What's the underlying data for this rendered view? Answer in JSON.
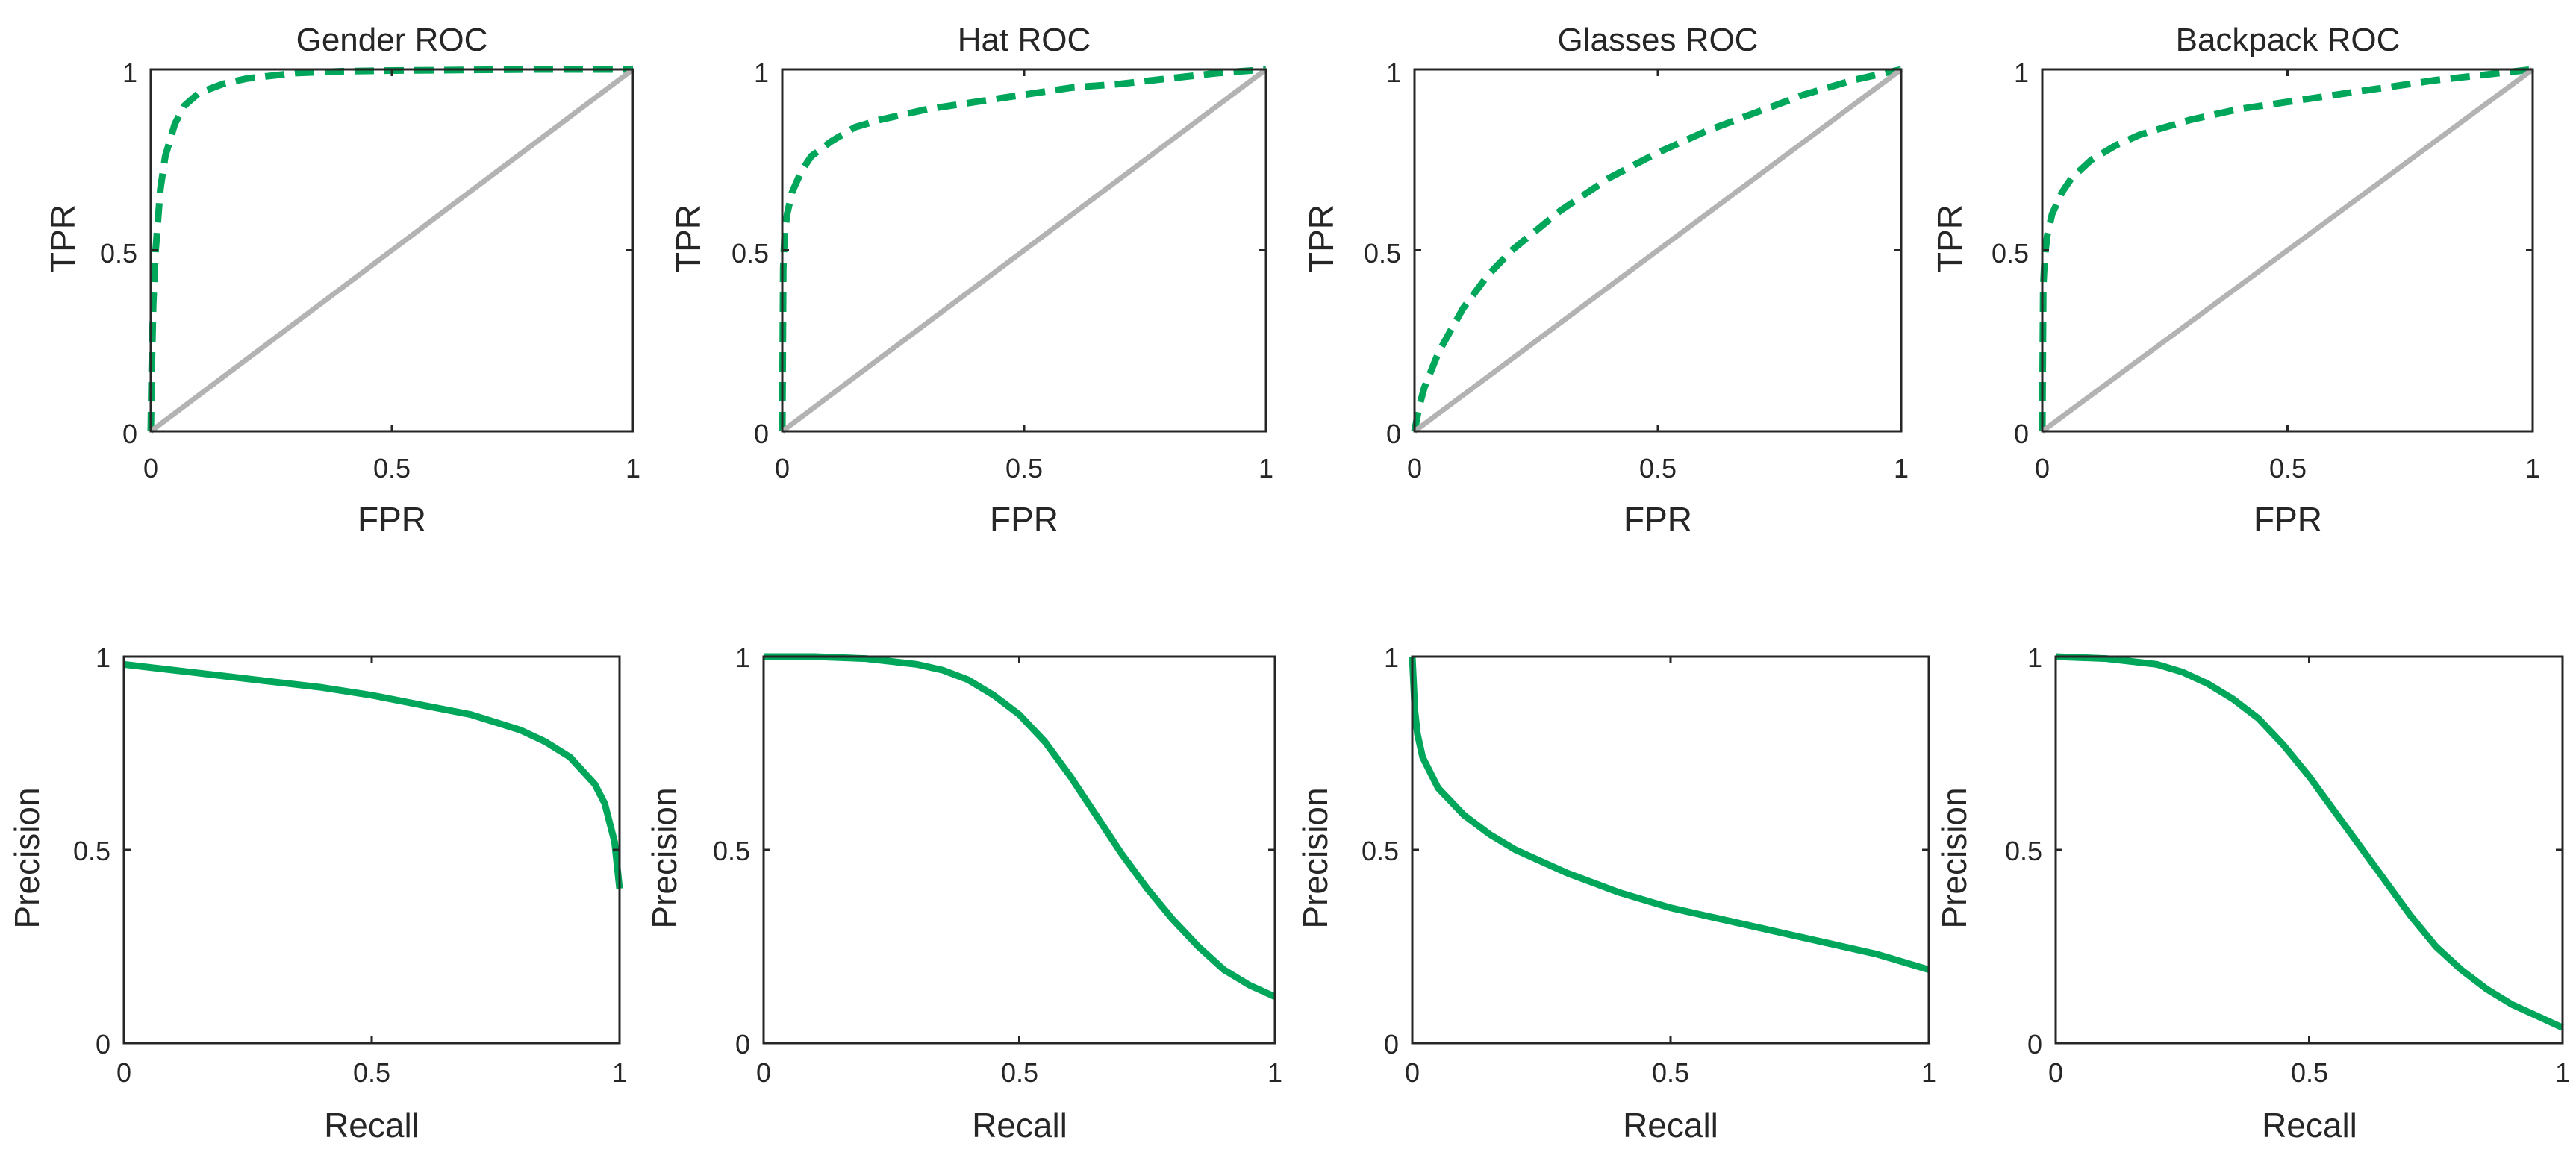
{
  "figure_colors": {
    "model": "#00a65a",
    "chance": "#b3b3b3",
    "axes": "#262626"
  },
  "chart_data": [
    {
      "id": "gender-roc",
      "type": "line",
      "title": "Gender ROC",
      "xlabel": "FPR",
      "ylabel": "TPR",
      "xlim": [
        0,
        1
      ],
      "ylim": [
        0,
        1
      ],
      "xticks": [
        "0",
        "0.5",
        "1"
      ],
      "yticks": [
        "0",
        "0.5",
        "1"
      ],
      "grid": false,
      "series": [
        {
          "name": "model",
          "style": "dashed",
          "x": [
            0,
            0.002,
            0.005,
            0.01,
            0.02,
            0.03,
            0.05,
            0.07,
            0.1,
            0.15,
            0.2,
            0.3,
            0.4,
            0.5,
            0.6,
            0.7,
            0.8,
            1.0
          ],
          "y": [
            0,
            0.18,
            0.35,
            0.5,
            0.67,
            0.76,
            0.85,
            0.9,
            0.935,
            0.96,
            0.975,
            0.99,
            0.995,
            0.997,
            0.998,
            0.999,
            1.0,
            1.0
          ]
        },
        {
          "name": "chance",
          "style": "solid",
          "x": [
            0,
            1
          ],
          "y": [
            0,
            1
          ]
        }
      ]
    },
    {
      "id": "hat-roc",
      "type": "line",
      "title": "Hat ROC",
      "xlabel": "FPR",
      "ylabel": "TPR",
      "xlim": [
        0,
        1
      ],
      "ylim": [
        0,
        1
      ],
      "xticks": [
        "0",
        "0.5",
        "1"
      ],
      "yticks": [
        "0",
        "0.5",
        "1"
      ],
      "grid": false,
      "series": [
        {
          "name": "model",
          "style": "dashed",
          "x": [
            0,
            0.002,
            0.005,
            0.01,
            0.02,
            0.04,
            0.06,
            0.1,
            0.15,
            0.2,
            0.3,
            0.4,
            0.5,
            0.6,
            0.7,
            0.8,
            0.9,
            1.0
          ],
          "y": [
            0,
            0.45,
            0.55,
            0.6,
            0.66,
            0.72,
            0.76,
            0.8,
            0.84,
            0.86,
            0.89,
            0.91,
            0.93,
            0.95,
            0.96,
            0.975,
            0.99,
            1.0
          ]
        },
        {
          "name": "chance",
          "style": "solid",
          "x": [
            0,
            1
          ],
          "y": [
            0,
            1
          ]
        }
      ]
    },
    {
      "id": "glasses-roc",
      "type": "line",
      "title": "Glasses ROC",
      "xlabel": "FPR",
      "ylabel": "TPR",
      "xlim": [
        0,
        1
      ],
      "ylim": [
        0,
        1
      ],
      "xticks": [
        "0",
        "0.5",
        "1"
      ],
      "yticks": [
        "0",
        "0.5",
        "1"
      ],
      "grid": false,
      "series": [
        {
          "name": "model",
          "style": "dashed",
          "x": [
            0,
            0.01,
            0.02,
            0.05,
            0.1,
            0.15,
            0.2,
            0.3,
            0.4,
            0.5,
            0.6,
            0.7,
            0.8,
            0.9,
            1.0
          ],
          "y": [
            0,
            0.07,
            0.12,
            0.22,
            0.34,
            0.43,
            0.5,
            0.61,
            0.7,
            0.77,
            0.83,
            0.88,
            0.93,
            0.97,
            1.0
          ]
        },
        {
          "name": "chance",
          "style": "solid",
          "x": [
            0,
            1
          ],
          "y": [
            0,
            1
          ]
        }
      ]
    },
    {
      "id": "backpack-roc",
      "type": "line",
      "title": "Backpack ROC",
      "xlabel": "FPR",
      "ylabel": "TPR",
      "xlim": [
        0,
        1
      ],
      "ylim": [
        0,
        1
      ],
      "xticks": [
        "0",
        "0.5",
        "1"
      ],
      "yticks": [
        "0",
        "0.5",
        "1"
      ],
      "grid": false,
      "series": [
        {
          "name": "model",
          "style": "dashed",
          "x": [
            0,
            0.002,
            0.005,
            0.01,
            0.02,
            0.04,
            0.06,
            0.1,
            0.15,
            0.2,
            0.3,
            0.4,
            0.5,
            0.6,
            0.7,
            0.8,
            0.9,
            1.0
          ],
          "y": [
            0,
            0.4,
            0.48,
            0.54,
            0.6,
            0.66,
            0.7,
            0.75,
            0.79,
            0.82,
            0.86,
            0.89,
            0.91,
            0.93,
            0.95,
            0.97,
            0.985,
            1.0
          ]
        },
        {
          "name": "chance",
          "style": "solid",
          "x": [
            0,
            1
          ],
          "y": [
            0,
            1
          ]
        }
      ]
    },
    {
      "id": "gender-pr",
      "type": "line",
      "title": "",
      "xlabel": "Recall",
      "ylabel": "Precision",
      "xlim": [
        0,
        1
      ],
      "ylim": [
        0,
        1
      ],
      "xticks": [
        "0",
        "0.5",
        "1"
      ],
      "yticks": [
        "0",
        "0.5",
        "1"
      ],
      "grid": false,
      "series": [
        {
          "name": "model",
          "style": "solid",
          "x": [
            0,
            0.1,
            0.2,
            0.3,
            0.4,
            0.5,
            0.6,
            0.7,
            0.8,
            0.85,
            0.9,
            0.95,
            0.97,
            0.99,
            1.0
          ],
          "y": [
            0.98,
            0.965,
            0.95,
            0.935,
            0.92,
            0.9,
            0.875,
            0.85,
            0.81,
            0.78,
            0.74,
            0.67,
            0.62,
            0.52,
            0.4
          ]
        }
      ]
    },
    {
      "id": "hat-pr",
      "type": "line",
      "title": "",
      "xlabel": "Recall",
      "ylabel": "Precision",
      "xlim": [
        0,
        1
      ],
      "ylim": [
        0,
        1
      ],
      "xticks": [
        "0",
        "0.5",
        "1"
      ],
      "yticks": [
        "0",
        "0.5",
        "1"
      ],
      "grid": false,
      "series": [
        {
          "name": "model",
          "style": "solid",
          "x": [
            0,
            0.1,
            0.2,
            0.3,
            0.35,
            0.4,
            0.45,
            0.5,
            0.55,
            0.6,
            0.65,
            0.7,
            0.75,
            0.8,
            0.85,
            0.9,
            0.95,
            1.0
          ],
          "y": [
            1.0,
            1.0,
            0.995,
            0.98,
            0.965,
            0.94,
            0.9,
            0.85,
            0.78,
            0.69,
            0.59,
            0.49,
            0.4,
            0.32,
            0.25,
            0.19,
            0.15,
            0.12
          ]
        }
      ]
    },
    {
      "id": "glasses-pr",
      "type": "line",
      "title": "",
      "xlabel": "Recall",
      "ylabel": "Precision",
      "xlim": [
        0,
        1
      ],
      "ylim": [
        0,
        1
      ],
      "xticks": [
        "0",
        "0.5",
        "1"
      ],
      "yticks": [
        "0",
        "0.5",
        "1"
      ],
      "grid": false,
      "series": [
        {
          "name": "model",
          "style": "solid",
          "x": [
            0,
            0.005,
            0.01,
            0.02,
            0.05,
            0.1,
            0.15,
            0.2,
            0.3,
            0.4,
            0.5,
            0.6,
            0.7,
            0.8,
            0.9,
            1.0
          ],
          "y": [
            1.0,
            0.86,
            0.8,
            0.74,
            0.66,
            0.59,
            0.54,
            0.5,
            0.44,
            0.39,
            0.35,
            0.32,
            0.29,
            0.26,
            0.23,
            0.19
          ]
        }
      ]
    },
    {
      "id": "backpack-pr",
      "type": "line",
      "title": "",
      "xlabel": "Recall",
      "ylabel": "Precision",
      "xlim": [
        0,
        1
      ],
      "ylim": [
        0,
        1
      ],
      "xticks": [
        "0",
        "0.5",
        "1"
      ],
      "yticks": [
        "0",
        "0.5",
        "1"
      ],
      "grid": false,
      "series": [
        {
          "name": "model",
          "style": "solid",
          "x": [
            0,
            0.1,
            0.2,
            0.25,
            0.3,
            0.35,
            0.4,
            0.45,
            0.5,
            0.55,
            0.6,
            0.65,
            0.7,
            0.75,
            0.8,
            0.85,
            0.9,
            0.95,
            1.0
          ],
          "y": [
            1.0,
            0.995,
            0.98,
            0.96,
            0.93,
            0.89,
            0.84,
            0.77,
            0.69,
            0.6,
            0.51,
            0.42,
            0.33,
            0.25,
            0.19,
            0.14,
            0.1,
            0.07,
            0.04
          ]
        }
      ]
    }
  ]
}
